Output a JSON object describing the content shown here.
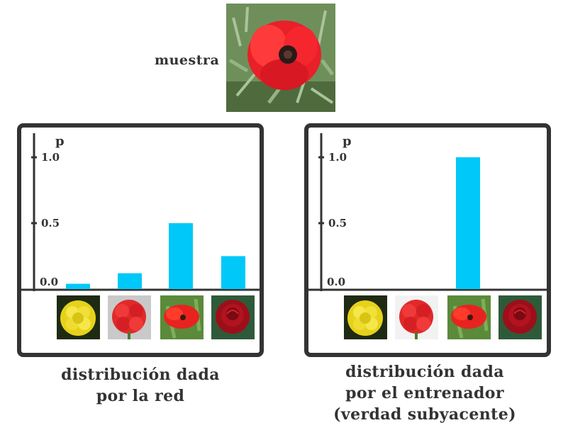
{
  "sample": {
    "label": "muestra",
    "image": "red-poppy"
  },
  "colors": {
    "bar": "#00c8f8",
    "frame": "#333333",
    "text": "#333333"
  },
  "chart_data": [
    {
      "type": "bar",
      "categories": [
        "yellow-marigold",
        "red-carnation",
        "red-poppy",
        "red-rose"
      ],
      "values": [
        0.04,
        0.12,
        0.5,
        0.25
      ],
      "ylabel": "p",
      "yticks": [
        "0.0",
        "0.5",
        "1.0"
      ],
      "ylim": [
        0,
        1.0
      ],
      "grid": false,
      "caption": [
        "distribución dada",
        "por la red"
      ]
    },
    {
      "type": "bar",
      "categories": [
        "yellow-marigold",
        "red-carnation",
        "red-poppy",
        "red-rose"
      ],
      "values": [
        0.0,
        0.0,
        1.0,
        0.0
      ],
      "ylabel": "p",
      "yticks": [
        "0.0",
        "0.5",
        "1.0"
      ],
      "ylim": [
        0,
        1.0
      ],
      "grid": false,
      "caption": [
        "distribución dada",
        "por el entrenador",
        "(verdad subyacente)"
      ]
    }
  ]
}
